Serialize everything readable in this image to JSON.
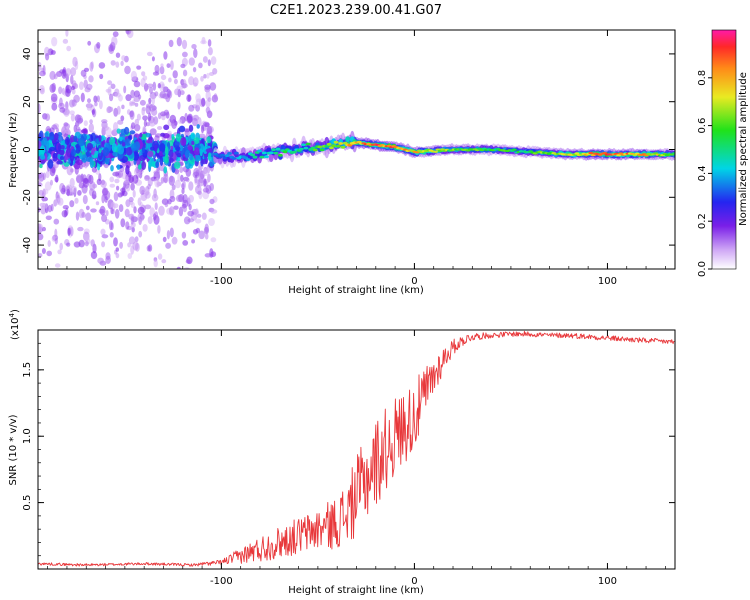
{
  "figure_title": "C2E1.2023.239.00.41.G07",
  "colors": {
    "snr_line": "#e8383b",
    "spectro_bg": "#ffffff",
    "axis": "#000000"
  },
  "chart_data": [
    {
      "type": "heatmap",
      "title": "",
      "xlabel": "Height of straight line (km)",
      "ylabel": "Frequency (Hz)",
      "xlim": [
        -195,
        135
      ],
      "ylim": [
        -50,
        50
      ],
      "x_ticks": [
        {
          "value": -100,
          "label": "-100"
        },
        {
          "value": 0,
          "label": "0"
        },
        {
          "value": 100,
          "label": "100"
        }
      ],
      "y_ticks": [
        {
          "value": -40,
          "label": "-40"
        },
        {
          "value": -20,
          "label": "-20"
        },
        {
          "value": 0,
          "label": "0"
        },
        {
          "value": 20,
          "label": "20"
        },
        {
          "value": 40,
          "label": "40"
        }
      ],
      "colorbar": {
        "label": "Normalized spectral amplitude",
        "range": [
          0,
          1
        ],
        "ticks": [
          {
            "value": 0.0,
            "label": "0.0"
          },
          {
            "value": 0.2,
            "label": "0.2"
          },
          {
            "value": 0.4,
            "label": "0.4"
          },
          {
            "value": 0.6,
            "label": "0.6"
          },
          {
            "value": 0.8,
            "label": "0.8"
          }
        ]
      },
      "regions": [
        {
          "name": "diffuse-noise",
          "x_range": [
            -195,
            -103
          ],
          "center_freq_hz": 0,
          "spread_hz": 48,
          "amplitude": 0.12
        },
        {
          "name": "noisy-core",
          "x_range": [
            -195,
            -103
          ],
          "center_freq_hz": 0,
          "spread_hz": 7,
          "amplitude": 0.32
        }
      ],
      "ridge": [
        {
          "x": -103,
          "freq": -3,
          "amp": 0.35
        },
        {
          "x": -90,
          "freq": -3,
          "amp": 0.4
        },
        {
          "x": -80,
          "freq": -2,
          "amp": 0.45
        },
        {
          "x": -70,
          "freq": -1,
          "amp": 0.5
        },
        {
          "x": -60,
          "freq": 0,
          "amp": 0.5
        },
        {
          "x": -50,
          "freq": 1,
          "amp": 0.55
        },
        {
          "x": -40,
          "freq": 2,
          "amp": 0.65
        },
        {
          "x": -35,
          "freq": 3,
          "amp": 0.75
        },
        {
          "x": -30,
          "freq": 3,
          "amp": 0.8
        },
        {
          "x": -20,
          "freq": 2,
          "amp": 0.85
        },
        {
          "x": -10,
          "freq": 1,
          "amp": 0.85
        },
        {
          "x": 0,
          "freq": -1,
          "amp": 0.75
        },
        {
          "x": 20,
          "freq": 0,
          "amp": 0.6
        },
        {
          "x": 40,
          "freq": 0,
          "amp": 0.55
        },
        {
          "x": 60,
          "freq": -1,
          "amp": 0.55
        },
        {
          "x": 80,
          "freq": -2,
          "amp": 0.7
        },
        {
          "x": 100,
          "freq": -2,
          "amp": 0.85
        },
        {
          "x": 120,
          "freq": -2,
          "amp": 0.75
        },
        {
          "x": 135,
          "freq": -2,
          "amp": 0.6
        }
      ]
    },
    {
      "type": "line",
      "title": "",
      "xlabel": "Height of straight line (km)",
      "ylabel": "SNR (10 * v/v)",
      "y_multiplier": "(x10",
      "y_multiplier_exp": "4",
      "y_multiplier_close": ")",
      "xlim": [
        -195,
        135
      ],
      "ylim": [
        0,
        1.8
      ],
      "x_ticks": [
        {
          "value": -100,
          "label": "-100"
        },
        {
          "value": 0,
          "label": "0"
        },
        {
          "value": 100,
          "label": "100"
        }
      ],
      "y_ticks": [
        {
          "value": 0.5,
          "label": "0.5"
        },
        {
          "value": 1.0,
          "label": "1.0"
        },
        {
          "value": 1.5,
          "label": "1.5"
        }
      ],
      "series": [
        {
          "name": "SNR",
          "x": [
            -195,
            -170,
            -140,
            -115,
            -100,
            -90,
            -80,
            -70,
            -60,
            -50,
            -40,
            -35,
            -30,
            -25,
            -20,
            -15,
            -10,
            -5,
            0,
            5,
            10,
            15,
            20,
            25,
            30,
            40,
            50,
            60,
            70,
            80,
            90,
            100,
            110,
            120,
            135
          ],
          "y": [
            0.04,
            0.03,
            0.04,
            0.03,
            0.05,
            0.1,
            0.15,
            0.2,
            0.25,
            0.3,
            0.35,
            0.42,
            0.55,
            0.68,
            0.8,
            0.9,
            1.0,
            1.08,
            1.15,
            1.3,
            1.45,
            1.58,
            1.67,
            1.72,
            1.75,
            1.76,
            1.77,
            1.77,
            1.76,
            1.76,
            1.75,
            1.74,
            1.73,
            1.72,
            1.71
          ],
          "noise_amplitude": [
            0.01,
            0.01,
            0.01,
            0.01,
            0.02,
            0.06,
            0.1,
            0.12,
            0.14,
            0.16,
            0.2,
            0.25,
            0.3,
            0.32,
            0.34,
            0.32,
            0.3,
            0.28,
            0.26,
            0.22,
            0.16,
            0.1,
            0.06,
            0.04,
            0.03,
            0.02,
            0.02,
            0.02,
            0.02,
            0.02,
            0.02,
            0.02,
            0.02,
            0.02,
            0.02
          ]
        }
      ]
    }
  ]
}
